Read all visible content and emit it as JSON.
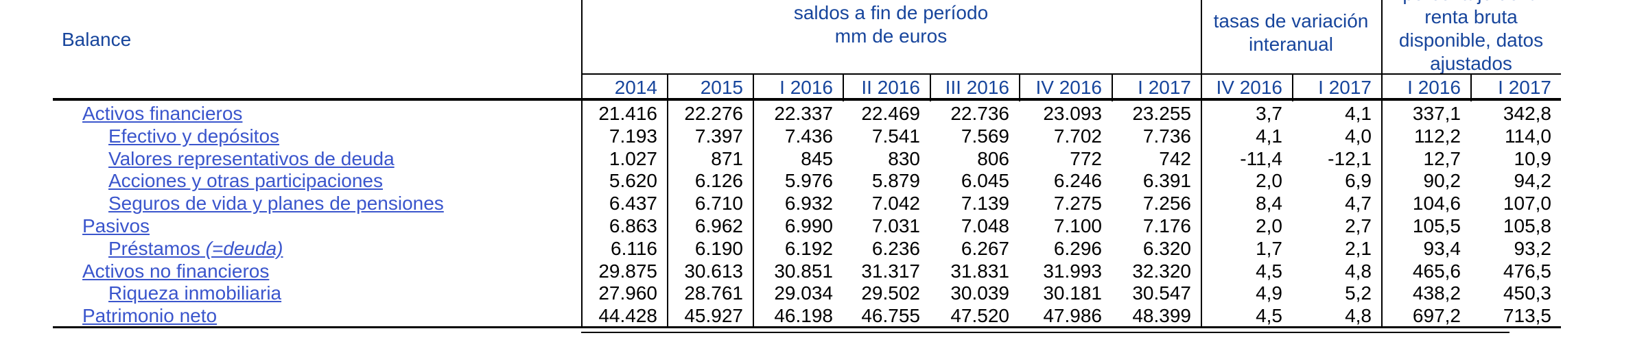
{
  "table": {
    "row_header_title": "Balance",
    "column_groups": [
      {
        "id": "saldos",
        "lines": [
          "saldos a fin de período",
          "mm de euros"
        ]
      },
      {
        "id": "tasas",
        "lines": [
          "tasas de variación",
          "interanual"
        ]
      },
      {
        "id": "renta",
        "clipped_line": "porcentaje de la",
        "lines": [
          "renta bruta",
          "disponible, datos",
          "ajustados"
        ]
      }
    ],
    "columns": [
      "2014",
      "2015",
      "I 2016",
      "II 2016",
      "III 2016",
      "IV 2016",
      "I 2017",
      "IV 2016",
      "I 2017",
      "I 2016",
      "I 2017"
    ],
    "rows": [
      {
        "label": "Activos financieros",
        "indent": 0,
        "values": [
          "21.416",
          "22.276",
          "22.337",
          "22.469",
          "22.736",
          "23.093",
          "23.255",
          "3,7",
          "4,1",
          "337,1",
          "342,8"
        ]
      },
      {
        "label": "Efectivo y depósitos",
        "indent": 1,
        "values": [
          "7.193",
          "7.397",
          "7.436",
          "7.541",
          "7.569",
          "7.702",
          "7.736",
          "4,1",
          "4,0",
          "112,2",
          "114,0"
        ]
      },
      {
        "label": "Valores representativos de deuda",
        "indent": 1,
        "values": [
          "1.027",
          "871",
          "845",
          "830",
          "806",
          "772",
          "742",
          "-11,4",
          "-12,1",
          "12,7",
          "10,9"
        ]
      },
      {
        "label": "Acciones y otras participaciones",
        "indent": 1,
        "values": [
          "5.620",
          "6.126",
          "5.976",
          "5.879",
          "6.045",
          "6.246",
          "6.391",
          "2,0",
          "6,9",
          "90,2",
          "94,2"
        ]
      },
      {
        "label": "Seguros de vida y planes de pensiones",
        "indent": 1,
        "values": [
          "6.437",
          "6.710",
          "6.932",
          "7.042",
          "7.139",
          "7.275",
          "7.256",
          "8,4",
          "4,7",
          "104,6",
          "107,0"
        ]
      },
      {
        "label": "Pasivos",
        "indent": 0,
        "values": [
          "6.863",
          "6.962",
          "6.990",
          "7.031",
          "7.048",
          "7.100",
          "7.176",
          "2,0",
          "2,7",
          "105,5",
          "105,8"
        ]
      },
      {
        "label": "Préstamos",
        "label_italic": "(=deuda)",
        "indent": 1,
        "values": [
          "6.116",
          "6.190",
          "6.192",
          "6.236",
          "6.267",
          "6.296",
          "6.320",
          "1,7",
          "2,1",
          "93,4",
          "93,2"
        ]
      },
      {
        "label": "Activos no financieros",
        "indent": 0,
        "values": [
          "29.875",
          "30.613",
          "30.851",
          "31.317",
          "31.831",
          "31.993",
          "32.320",
          "4,5",
          "4,8",
          "465,6",
          "476,5"
        ]
      },
      {
        "label": "Riqueza inmobiliaria",
        "indent": 1,
        "values": [
          "27.960",
          "28.761",
          "29.034",
          "29.502",
          "30.039",
          "30.181",
          "30.547",
          "4,9",
          "5,2",
          "438,2",
          "450,3"
        ]
      },
      {
        "label": "Patrimonio neto",
        "indent": 0,
        "values": [
          "44.428",
          "45.927",
          "46.198",
          "46.755",
          "47.520",
          "47.986",
          "48.399",
          "4,5",
          "4,8",
          "697,2",
          "713,5"
        ]
      }
    ]
  },
  "colors": {
    "header_blue": "#17459c",
    "link_blue": "#3a55cc",
    "line_black": "#000000"
  }
}
